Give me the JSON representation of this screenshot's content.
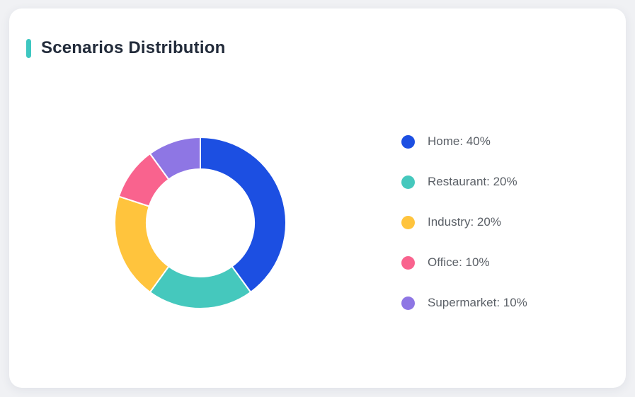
{
  "page": {
    "background_color": "#f0f1f4",
    "card_background": "#ffffff"
  },
  "header": {
    "title": "Scenarios Distribution",
    "accent_color": "#3ec7c1",
    "title_color": "#222b3a"
  },
  "chart_data": {
    "type": "pie",
    "subtype": "donut",
    "title": "Scenarios Distribution",
    "categories": [
      "Home",
      "Restaurant",
      "Industry",
      "Office",
      "Supermarket"
    ],
    "values": [
      40,
      20,
      20,
      10,
      10
    ],
    "unit": "%",
    "colors": [
      "#1c4fe2",
      "#45c8bd",
      "#ffc43d",
      "#f9638e",
      "#8e76e4"
    ],
    "legend_labels": [
      "Home: 40%",
      "Restaurant: 20%",
      "Industry: 20%",
      "Office: 10%",
      "Supermarket: 10%"
    ],
    "legend_position": "right",
    "legend_text_color": "#5b6067",
    "start_angle_deg": 0,
    "direction": "clockwise",
    "inner_radius_ratio": 0.63,
    "slice_gap_color": "#ffffff"
  }
}
